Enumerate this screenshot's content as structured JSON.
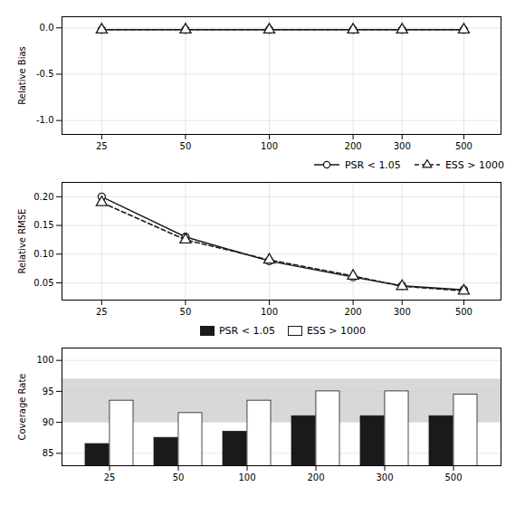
{
  "chart_data": [
    {
      "type": "line",
      "x": [
        25,
        50,
        100,
        200,
        300,
        500
      ],
      "xlim": [
        18,
        680
      ],
      "xticks": [
        25,
        50,
        100,
        200,
        300,
        500
      ],
      "log": "x",
      "ylim": [
        -1.15,
        0.12
      ],
      "yticks": [
        {
          "value": 0.0,
          "label": "0.0"
        },
        -0.5,
        {
          "value": -1.0,
          "label": "-1.0"
        }
      ],
      "ylabel": "Relative Bias",
      "grid": true,
      "series": [
        {
          "color": "#1a1a1a",
          "marker": "circle",
          "line_style": "solid",
          "values": [
            -0.02,
            -0.02,
            -0.02,
            -0.02,
            -0.02,
            -0.02
          ]
        },
        {
          "color": "#1a1a1a",
          "marker": "triangle",
          "line_style": "dashed",
          "values": [
            -0.02,
            -0.02,
            -0.02,
            -0.02,
            -0.02,
            -0.02
          ]
        }
      ]
    },
    {
      "type": "line",
      "x": [
        25,
        50,
        100,
        200,
        300,
        500
      ],
      "xlim": [
        18,
        680
      ],
      "xticks": [
        25,
        50,
        100,
        200,
        300,
        500
      ],
      "log": "x",
      "ylim": [
        0.02,
        0.225
      ],
      "yticks": [
        0.05,
        {
          "value": 0.1,
          "label": "0.10"
        },
        0.15,
        {
          "value": 0.2,
          "label": "0.20"
        }
      ],
      "ylabel": "Relative RMSE",
      "grid": true,
      "legend": "upper right",
      "series": [
        {
          "name": "PSR < 1.05",
          "color": "#1a1a1a",
          "marker": "circle",
          "line_style": "solid",
          "values": [
            0.2,
            0.13,
            0.088,
            0.06,
            0.045,
            0.038
          ]
        },
        {
          "name": "ESS > 1000",
          "color": "#1a1a1a",
          "marker": "triangle",
          "line_style": "dashed",
          "values": [
            0.19,
            0.125,
            0.09,
            0.062,
            0.044,
            0.036
          ]
        }
      ]
    },
    {
      "type": "bar",
      "categories": [
        "25",
        "50",
        "100",
        "200",
        "300",
        "500"
      ],
      "ylim": [
        83,
        102
      ],
      "yticks": [
        85,
        90,
        95,
        100
      ],
      "ylabel": "Coverage Rate",
      "grid": "y",
      "legend": "upper center",
      "shaded_band": [
        90,
        97
      ],
      "series": [
        {
          "name": "PSR < 1.05",
          "color": "#1a1a1a",
          "values": [
            86.5,
            87.5,
            88.5,
            91.0,
            91.0,
            91.0
          ]
        },
        {
          "name": "ESS > 1000",
          "color": "#ffffff",
          "values": [
            93.5,
            91.5,
            93.5,
            95.0,
            95.0,
            94.5
          ]
        }
      ]
    }
  ]
}
